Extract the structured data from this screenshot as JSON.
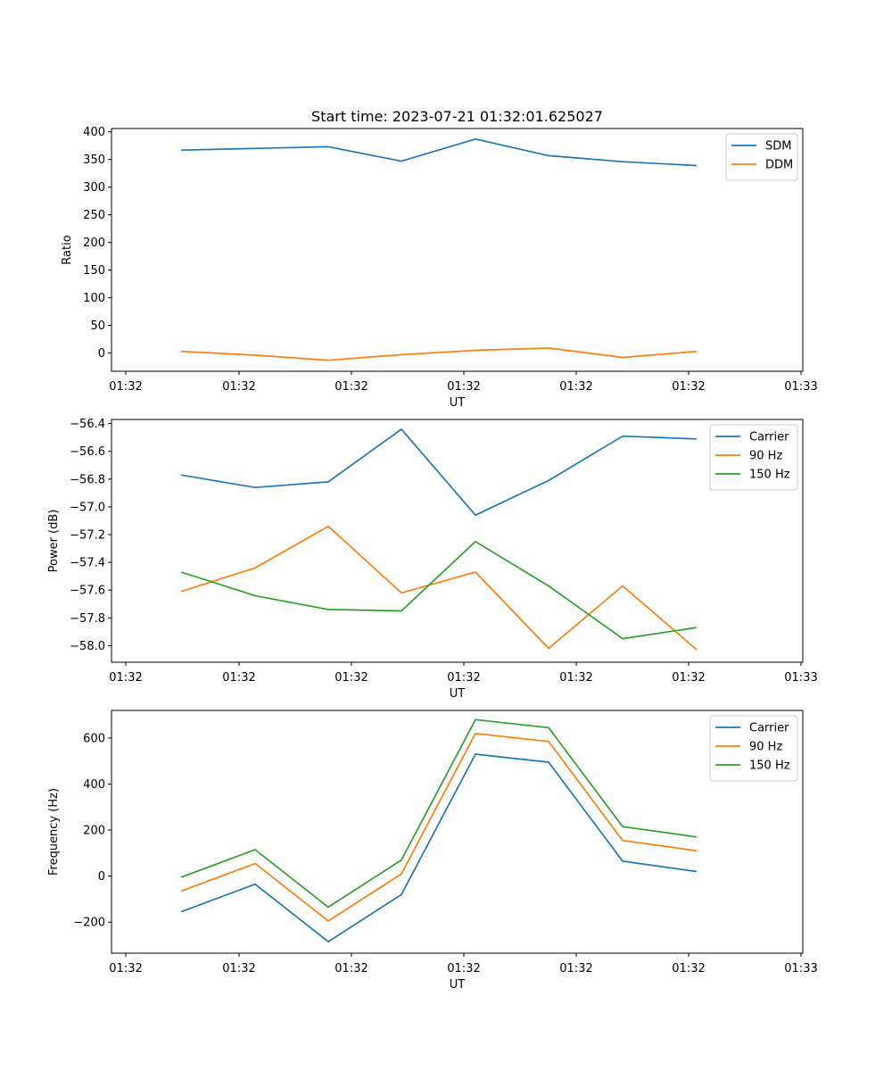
{
  "title": "Start time: 2023-07-21 01:32:01.625027",
  "chart_data": [
    {
      "type": "line",
      "title": "Start time: 2023-07-21 01:32:01.625027",
      "xlabel": "UT",
      "ylabel": "Ratio",
      "x_tick_labels": [
        "01:32",
        "01:32",
        "01:32",
        "01:32",
        "01:32",
        "01:32",
        "01:33"
      ],
      "y_ticks": [
        0,
        50,
        100,
        150,
        200,
        250,
        300,
        350,
        400
      ],
      "y_tick_labels": [
        "0",
        "50",
        "100",
        "150",
        "200",
        "250",
        "300",
        "350",
        "400"
      ],
      "ylim": [
        -33,
        406
      ],
      "legend_position": "top-right",
      "series": [
        {
          "name": "SDM",
          "color": "#1f77b4",
          "values": [
            367,
            370,
            373,
            347,
            387,
            357,
            346,
            339
          ]
        },
        {
          "name": "DDM",
          "color": "#ff7f0e",
          "values": [
            3,
            -4,
            -13,
            -3,
            5,
            9,
            -8,
            3
          ]
        }
      ]
    },
    {
      "type": "line",
      "xlabel": "UT",
      "ylabel": "Power (dB)",
      "x_tick_labels": [
        "01:32",
        "01:32",
        "01:32",
        "01:32",
        "01:32",
        "01:32",
        "01:33"
      ],
      "y_ticks": [
        -58.0,
        -57.8,
        -57.6,
        -57.4,
        -57.2,
        -57.0,
        -56.8,
        -56.6,
        -56.4
      ],
      "y_tick_labels": [
        "−58.0",
        "−57.8",
        "−57.6",
        "−57.4",
        "−57.2",
        "−57.0",
        "−56.8",
        "−56.6",
        "−56.4"
      ],
      "ylim": [
        -58.12,
        -56.37
      ],
      "legend_position": "top-right",
      "series": [
        {
          "name": "Carrier",
          "color": "#1f77b4",
          "values": [
            -56.77,
            -56.86,
            -56.82,
            -56.44,
            -57.06,
            -56.81,
            -56.49,
            -56.51
          ]
        },
        {
          "name": "90 Hz",
          "color": "#ff7f0e",
          "values": [
            -57.61,
            -57.44,
            -57.14,
            -57.62,
            -57.47,
            -58.02,
            -57.57,
            -58.03
          ]
        },
        {
          "name": "150 Hz",
          "color": "#2ca02c",
          "values": [
            -57.47,
            -57.64,
            -57.74,
            -57.75,
            -57.25,
            -57.57,
            -57.95,
            -57.87
          ]
        }
      ]
    },
    {
      "type": "line",
      "xlabel": "UT",
      "ylabel": "Frequency (Hz)",
      "x_tick_labels": [
        "01:32",
        "01:32",
        "01:32",
        "01:32",
        "01:32",
        "01:32",
        "01:33"
      ],
      "y_ticks": [
        -200,
        0,
        200,
        400,
        600
      ],
      "y_tick_labels": [
        "−200",
        "0",
        "200",
        "400",
        "600"
      ],
      "ylim": [
        -335,
        720
      ],
      "legend_position": "top-right",
      "series": [
        {
          "name": "Carrier",
          "color": "#1f77b4",
          "values": [
            -155,
            -35,
            -285,
            -80,
            530,
            495,
            65,
            20
          ]
        },
        {
          "name": "90 Hz",
          "color": "#ff7f0e",
          "values": [
            -65,
            55,
            -195,
            10,
            620,
            585,
            155,
            110
          ]
        },
        {
          "name": "150 Hz",
          "color": "#2ca02c",
          "values": [
            -5,
            115,
            -135,
            70,
            680,
            645,
            215,
            170
          ]
        }
      ]
    }
  ]
}
